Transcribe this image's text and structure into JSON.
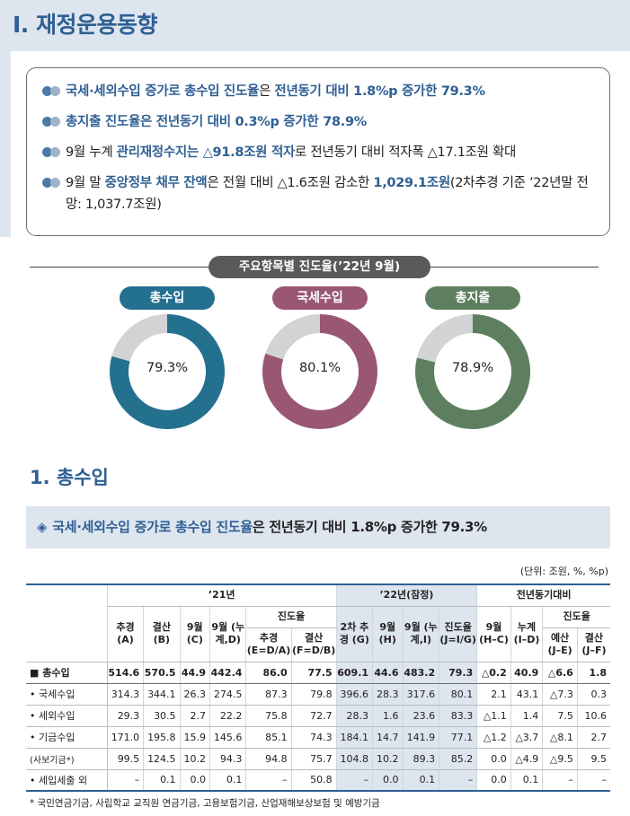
{
  "page_title": "Ⅰ. 재정운용동향",
  "summary": [
    [
      {
        "t": "국세·세외수입 증가로 총수입 진도율",
        "h": true
      },
      {
        "t": "은 ",
        "h": false
      },
      {
        "t": "전년동기 대비 1.8%p 증가한 79.3%",
        "h": true
      }
    ],
    [
      {
        "t": "총지출 진도율은 전년동기 대비 0.3%p 증가한 78.9%",
        "h": true
      }
    ],
    [
      {
        "t": "9월 누계 ",
        "h": false
      },
      {
        "t": "관리재정수지는 △91.8조원 적자",
        "h": true
      },
      {
        "t": "로 전년동기 대비 적자폭 △17.1조원 확대",
        "h": false
      }
    ],
    [
      {
        "t": "9월 말 ",
        "h": false
      },
      {
        "t": "중앙정부 채무 잔액",
        "h": true
      },
      {
        "t": "은 전월 대비 △1.6조원 감소한 ",
        "h": false
      },
      {
        "t": "1,029.1조원",
        "h": true
      },
      {
        "t": "(2차추경 기준 ’22년말 전망: 1,037.7조원)",
        "h": false
      }
    ]
  ],
  "donut_section_title": "주요항목별 진도율(’22년 9월)",
  "donuts": [
    {
      "label": "총수입",
      "value": "79.3%",
      "fraction": 0.793,
      "color": "#24708f"
    },
    {
      "label": "국세수입",
      "value": "80.1%",
      "fraction": 0.801,
      "color": "#995773"
    },
    {
      "label": "총지출",
      "value": "78.9%",
      "fraction": 0.789,
      "color": "#5d7f5f"
    }
  ],
  "section1_title": "1. 총수입",
  "callout": {
    "diamond": "◈",
    "highlight": "국세·세외수입 증가로 총수입 진도율",
    "rest": "은 전년동기 대비 1.8%p 증가한 79.3%"
  },
  "unit": "(단위: 조원, %, %p)",
  "table": {
    "group_21": "’21년",
    "group_22": "’22년(잠정)",
    "group_diff": "전년동기대비",
    "progress": "진도율",
    "col_budget": "추경 (A)",
    "col_settle": "결산 (B)",
    "col_sep": "9월 (C)",
    "col_sepcum": "9월 (누계,D)",
    "col_pr_budget": "추경 (E=D/A)",
    "col_pr_settle": "결산 (F=D/B)",
    "col_2nd": "2차 추경 (G)",
    "col_sep22": "9월 (H)",
    "col_sepcum22": "9월 (누계,I)",
    "col_pr22": "진도율 (J=I/G)",
    "col_d_sep": "9월 (H–C)",
    "col_d_cum": "누계 (I–D)",
    "col_d_budget": "예산 (J–E)",
    "col_d_settle": "결산 (J–F)",
    "rows": [
      {
        "label": "■  총수입",
        "cells": [
          "514.6",
          "570.5",
          "44.9",
          "442.4",
          "86.0",
          "77.5",
          "609.1",
          "44.6",
          "483.2",
          "79.3",
          "△0.2",
          "40.9",
          "△6.6",
          "1.8"
        ]
      },
      {
        "label": "• 국세수입",
        "cells": [
          "314.3",
          "344.1",
          "26.3",
          "274.5",
          "87.3",
          "79.8",
          "396.6",
          "28.3",
          "317.6",
          "80.1",
          "2.1",
          "43.1",
          "△7.3",
          "0.3"
        ]
      },
      {
        "label": "• 세외수입",
        "cells": [
          "29.3",
          "30.5",
          "2.7",
          "22.2",
          "75.8",
          "72.7",
          "28.3",
          "1.6",
          "23.6",
          "83.3",
          "△1.1",
          "1.4",
          "7.5",
          "10.6"
        ]
      },
      {
        "label": "• 기금수입",
        "cells": [
          "171.0",
          "195.8",
          "15.9",
          "145.6",
          "85.1",
          "74.3",
          "184.1",
          "14.7",
          "141.9",
          "77.1",
          "△1.2",
          "△3.7",
          "△8.1",
          "2.7"
        ]
      },
      {
        "label": "(사보기금*)",
        "cells": [
          "99.5",
          "124.5",
          "10.2",
          "94.3",
          "94.8",
          "75.7",
          "104.8",
          "10.2",
          "89.3",
          "85.2",
          "0.0",
          "△4.9",
          "△9.5",
          "9.5"
        ]
      },
      {
        "label": "• 세입세출 외",
        "cells": [
          "–",
          "0.1",
          "0.0",
          "0.1",
          "–",
          "50.8",
          "–",
          "0.0",
          "0.1",
          "–",
          "0.0",
          "0.1",
          "–",
          "–"
        ]
      }
    ]
  },
  "footnote": "* 국민연금기금, 사립학교 교직원 연금기금, 고용보험기금, 산업재해보상보험 및 예방기금"
}
